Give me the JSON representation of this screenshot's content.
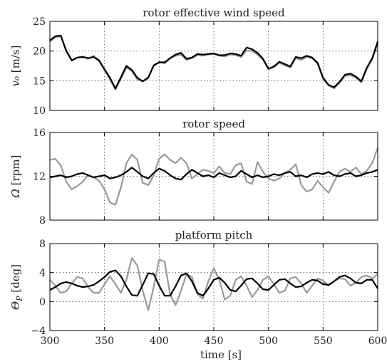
{
  "chart_data": [
    {
      "type": "line",
      "title": "rotor effective wind speed",
      "ylabel": "v₀ [m/s]",
      "xlim": [
        300,
        600
      ],
      "ylim": [
        10,
        25
      ],
      "xticks": [
        300,
        350,
        400,
        450,
        500,
        550,
        600
      ],
      "yticks": [
        10,
        15,
        20,
        25
      ],
      "grid": true,
      "series": [
        {
          "color": "#999999",
          "x": [
            300,
            305,
            310,
            315,
            320,
            325,
            330,
            335,
            340,
            345,
            350,
            355,
            360,
            365,
            370,
            375,
            380,
            385,
            390,
            395,
            400,
            405,
            410,
            415,
            420,
            425,
            430,
            435,
            440,
            445,
            450,
            455,
            460,
            465,
            470,
            475,
            480,
            485,
            490,
            495,
            500,
            505,
            510,
            515,
            520,
            525,
            530,
            535,
            540,
            545,
            550,
            555,
            560,
            565,
            570,
            575,
            580,
            585,
            590,
            595,
            600
          ],
          "y": [
            21.6,
            22.3,
            22.5,
            20.2,
            18.5,
            18.9,
            19.1,
            18.7,
            19.2,
            18.5,
            16.8,
            15.2,
            13.5,
            15.3,
            17.2,
            16.6,
            15.2,
            14.9,
            15.6,
            17.5,
            18.2,
            17.9,
            18.8,
            19.2,
            19.4,
            18.5,
            18.8,
            19.3,
            19.2,
            19.4,
            19.5,
            19.2,
            19.1,
            19.4,
            19.3,
            19.0,
            20.1,
            20.0,
            19.4,
            18.5,
            17.0,
            17.3,
            18.0,
            17.6,
            17.2,
            18.8,
            18.5,
            19.0,
            18.8,
            17.9,
            15.3,
            14.2,
            13.7,
            14.6,
            15.8,
            15.9,
            15.5,
            14.7,
            17.0,
            18.6,
            21.3
          ]
        },
        {
          "color": "#000000",
          "x": [
            300,
            305,
            310,
            315,
            320,
            325,
            330,
            335,
            340,
            345,
            350,
            355,
            360,
            365,
            370,
            375,
            380,
            385,
            390,
            395,
            400,
            405,
            410,
            415,
            420,
            425,
            430,
            435,
            440,
            445,
            450,
            455,
            460,
            465,
            470,
            475,
            480,
            485,
            490,
            495,
            500,
            505,
            510,
            515,
            520,
            525,
            530,
            535,
            540,
            545,
            550,
            555,
            560,
            565,
            570,
            575,
            580,
            585,
            590,
            595,
            600
          ],
          "y": [
            21.8,
            22.5,
            22.6,
            20.0,
            18.4,
            18.9,
            19.0,
            18.8,
            19.0,
            18.4,
            16.9,
            15.5,
            13.7,
            15.6,
            17.5,
            16.8,
            15.5,
            14.9,
            15.5,
            17.6,
            18.1,
            18.1,
            18.8,
            19.4,
            19.7,
            18.7,
            18.9,
            19.5,
            19.4,
            19.5,
            19.6,
            19.3,
            19.3,
            19.6,
            19.5,
            19.2,
            20.6,
            20.3,
            19.7,
            18.7,
            17.0,
            17.4,
            18.2,
            17.8,
            17.4,
            19.0,
            18.8,
            19.2,
            18.9,
            18.0,
            15.5,
            14.3,
            13.9,
            14.8,
            16.0,
            16.2,
            15.7,
            14.9,
            17.2,
            18.8,
            21.6
          ]
        }
      ]
    },
    {
      "type": "line",
      "title": "rotor speed",
      "ylabel": "Ω [rpm]",
      "xlim": [
        300,
        600
      ],
      "ylim": [
        8,
        16
      ],
      "xticks": [
        300,
        350,
        400,
        450,
        500,
        550,
        600
      ],
      "yticks": [
        8,
        12,
        16
      ],
      "grid": true,
      "series": [
        {
          "color": "#999999",
          "x": [
            300,
            305,
            310,
            315,
            320,
            325,
            330,
            335,
            340,
            345,
            350,
            355,
            360,
            365,
            370,
            375,
            380,
            385,
            390,
            395,
            400,
            405,
            410,
            415,
            420,
            425,
            430,
            435,
            440,
            445,
            450,
            455,
            460,
            465,
            470,
            475,
            480,
            485,
            490,
            495,
            500,
            505,
            510,
            515,
            520,
            525,
            530,
            535,
            540,
            545,
            550,
            555,
            560,
            565,
            570,
            575,
            580,
            585,
            590,
            595,
            600
          ],
          "y": [
            13.5,
            13.6,
            13.0,
            11.5,
            10.8,
            11.1,
            11.5,
            12.1,
            11.9,
            11.6,
            10.8,
            9.6,
            9.4,
            11.0,
            13.2,
            14.0,
            13.5,
            11.4,
            11.2,
            12.1,
            13.6,
            14.0,
            13.5,
            13.2,
            13.7,
            13.2,
            11.8,
            12.2,
            12.6,
            12.5,
            12.3,
            12.9,
            12.3,
            12.2,
            13.0,
            13.2,
            11.5,
            11.3,
            13.3,
            12.4,
            11.8,
            11.6,
            11.8,
            12.3,
            12.6,
            13.1,
            11.2,
            10.6,
            10.8,
            11.6,
            11.0,
            10.5,
            11.5,
            12.4,
            12.7,
            12.4,
            12.8,
            12.2,
            12.5,
            13.2,
            14.6
          ]
        },
        {
          "color": "#000000",
          "x": [
            300,
            305,
            310,
            315,
            320,
            325,
            330,
            335,
            340,
            345,
            350,
            355,
            360,
            365,
            370,
            375,
            380,
            385,
            390,
            395,
            400,
            405,
            410,
            415,
            420,
            425,
            430,
            435,
            440,
            445,
            450,
            455,
            460,
            465,
            470,
            475,
            480,
            485,
            490,
            495,
            500,
            505,
            510,
            515,
            520,
            525,
            530,
            535,
            540,
            545,
            550,
            555,
            560,
            565,
            570,
            575,
            580,
            585,
            590,
            595,
            600
          ],
          "y": [
            11.9,
            12.0,
            12.1,
            11.9,
            12.0,
            12.2,
            12.3,
            12.1,
            11.9,
            12.0,
            12.1,
            11.8,
            11.9,
            12.1,
            12.4,
            12.8,
            12.4,
            12.0,
            11.8,
            12.3,
            12.7,
            12.5,
            12.1,
            11.8,
            11.7,
            12.2,
            12.6,
            12.3,
            12.0,
            12.1,
            11.9,
            12.3,
            12.1,
            11.9,
            12.0,
            12.5,
            12.2,
            11.9,
            12.1,
            11.9,
            12.0,
            12.2,
            12.1,
            12.3,
            12.4,
            12.0,
            12.1,
            11.9,
            12.2,
            12.3,
            12.2,
            12.4,
            12.1,
            12.0,
            12.2,
            12.3,
            12.0,
            12.1,
            12.3,
            12.4,
            12.6
          ]
        }
      ]
    },
    {
      "type": "line",
      "title": "platform pitch",
      "ylabel": "Θ_P [deg]",
      "xlim": [
        300,
        600
      ],
      "ylim": [
        -4,
        8
      ],
      "xticks": [
        300,
        350,
        400,
        450,
        500,
        550,
        600
      ],
      "yticks": [
        -4,
        0,
        4,
        8
      ],
      "grid": true,
      "series": [
        {
          "color": "#999999",
          "x": [
            300,
            305,
            310,
            315,
            320,
            325,
            330,
            335,
            340,
            345,
            350,
            355,
            360,
            365,
            370,
            375,
            380,
            385,
            390,
            395,
            400,
            405,
            410,
            415,
            420,
            425,
            430,
            435,
            440,
            445,
            450,
            455,
            460,
            465,
            470,
            475,
            480,
            485,
            490,
            495,
            500,
            505,
            510,
            515,
            520,
            525,
            530,
            535,
            540,
            545,
            550,
            555,
            560,
            565,
            570,
            575,
            580,
            585,
            590,
            595,
            600
          ],
          "y": [
            3.0,
            2.2,
            1.2,
            1.4,
            2.5,
            3.4,
            3.2,
            2.0,
            1.2,
            1.2,
            2.4,
            3.5,
            2.4,
            1.2,
            3.0,
            6.0,
            5.0,
            1.5,
            -1.2,
            2.0,
            5.8,
            5.5,
            1.0,
            -0.5,
            1.5,
            3.8,
            3.4,
            1.0,
            0.4,
            2.8,
            4.6,
            3.0,
            0.3,
            0.8,
            3.0,
            3.5,
            2.2,
            0.6,
            1.6,
            3.0,
            3.5,
            2.4,
            1.2,
            1.5,
            3.2,
            3.4,
            2.5,
            1.2,
            2.2,
            3.2,
            2.9,
            2.2,
            2.8,
            3.2,
            3.1,
            2.2,
            2.6,
            3.4,
            3.6,
            3.2,
            3.8
          ]
        },
        {
          "color": "#000000",
          "x": [
            300,
            305,
            310,
            315,
            320,
            325,
            330,
            335,
            340,
            345,
            350,
            355,
            360,
            365,
            370,
            375,
            380,
            385,
            390,
            395,
            400,
            405,
            410,
            415,
            420,
            425,
            430,
            435,
            440,
            445,
            450,
            455,
            460,
            465,
            470,
            475,
            480,
            485,
            490,
            495,
            500,
            505,
            510,
            515,
            520,
            525,
            530,
            535,
            540,
            545,
            550,
            555,
            560,
            565,
            570,
            575,
            580,
            585,
            590,
            595,
            600
          ],
          "y": [
            1.6,
            2.0,
            2.5,
            2.7,
            2.5,
            2.2,
            2.0,
            2.1,
            2.3,
            2.8,
            3.4,
            4.1,
            4.3,
            3.5,
            2.1,
            0.9,
            0.8,
            2.3,
            3.9,
            3.8,
            2.2,
            0.8,
            0.8,
            2.1,
            3.6,
            3.9,
            2.8,
            1.2,
            0.8,
            1.8,
            3.0,
            3.3,
            2.6,
            1.6,
            1.4,
            2.2,
            3.1,
            3.2,
            2.5,
            1.7,
            1.6,
            2.3,
            3.0,
            3.1,
            2.5,
            2.0,
            2.1,
            2.6,
            3.0,
            2.9,
            2.4,
            2.3,
            2.8,
            3.4,
            3.6,
            3.2,
            2.6,
            2.5,
            3.0,
            3.0,
            1.8
          ]
        }
      ]
    }
  ],
  "shared_xlabel": "time [s]"
}
